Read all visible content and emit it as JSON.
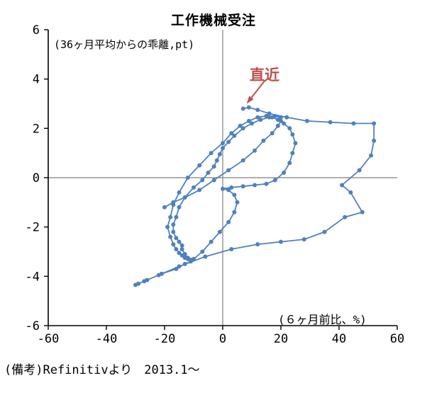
{
  "title": "工作機械受注",
  "footer": "(備考)Refinitivより　2013.1～",
  "annotations": {
    "y_unit": "(36ヶ月平均からの乖離,pt)",
    "x_unit": "(６ヶ月前比、%)",
    "latest_label": "直近"
  },
  "colors": {
    "series": "#4F81BD",
    "annotation": "#C0504D",
    "axis": "#000000",
    "zero_line": "#7f7f7f"
  },
  "chart_data": {
    "type": "scatter",
    "title": "工作機械受注",
    "xlabel": "(６ヶ月前比、%)",
    "ylabel": "(36ヶ月平均からの乖離,pt)",
    "xlim": [
      -60,
      60
    ],
    "ylim": [
      -6,
      6
    ],
    "xticks": [
      -60,
      -40,
      -20,
      0,
      20,
      40,
      60
    ],
    "yticks": [
      6,
      4,
      2,
      0,
      -2,
      -4,
      -6
    ],
    "grid": false,
    "line": true,
    "markers": true,
    "period_note": "2013.1～",
    "latest_point": {
      "x": 7,
      "y": 2.8
    },
    "points": [
      [
        -20,
        -1.2
      ],
      [
        -17,
        -1.0
      ],
      [
        -13,
        -0.8
      ],
      [
        -8,
        -0.5
      ],
      [
        -3,
        -0.1
      ],
      [
        2,
        0.3
      ],
      [
        7,
        0.7
      ],
      [
        11,
        1.1
      ],
      [
        14,
        1.5
      ],
      [
        17,
        1.8
      ],
      [
        19,
        2.1
      ],
      [
        20,
        2.3
      ],
      [
        20,
        2.45
      ],
      [
        18,
        2.5
      ],
      [
        16,
        2.45
      ],
      [
        13,
        2.35
      ],
      [
        10,
        2.2
      ],
      [
        7,
        2.0
      ],
      [
        4,
        1.7
      ],
      [
        2,
        1.45
      ],
      [
        0,
        1.2
      ],
      [
        -1,
        0.95
      ],
      [
        -2,
        0.7
      ],
      [
        -3,
        0.45
      ],
      [
        -5,
        0.2
      ],
      [
        -7,
        -0.1
      ],
      [
        -10,
        -0.4
      ],
      [
        -13,
        -0.8
      ],
      [
        -15,
        -1.2
      ],
      [
        -16,
        -1.6
      ],
      [
        -17,
        -1.9
      ],
      [
        -17,
        -2.2
      ],
      [
        -16,
        -2.45
      ],
      [
        -15,
        -2.6
      ],
      [
        -14,
        -2.75
      ],
      [
        -14,
        -2.9
      ],
      [
        -13,
        -3.1
      ],
      [
        -12,
        -3.25
      ],
      [
        -10,
        -3.3
      ],
      [
        -7,
        -3.0
      ],
      [
        -4,
        -2.6
      ],
      [
        -1,
        -2.2
      ],
      [
        2,
        -1.8
      ],
      [
        4,
        -1.4
      ],
      [
        5,
        -1.0
      ],
      [
        4,
        -0.7
      ],
      [
        2,
        -0.5
      ],
      [
        0,
        -0.45
      ],
      [
        3,
        -0.4
      ],
      [
        7,
        -0.35
      ],
      [
        11,
        -0.3
      ],
      [
        15,
        -0.25
      ],
      [
        18,
        -0.1
      ],
      [
        21,
        0.2
      ],
      [
        23,
        0.6
      ],
      [
        24,
        1.0
      ],
      [
        25,
        1.4
      ],
      [
        24,
        1.75
      ],
      [
        23,
        2.0
      ],
      [
        21,
        2.2
      ],
      [
        19,
        2.35
      ],
      [
        17,
        2.45
      ],
      [
        15,
        2.5
      ],
      [
        12,
        2.45
      ],
      [
        9,
        2.3
      ],
      [
        6,
        2.1
      ],
      [
        3,
        1.8
      ],
      [
        0,
        1.4
      ],
      [
        -4,
        1.0
      ],
      [
        -8,
        0.5
      ],
      [
        -12,
        0.0
      ],
      [
        -15,
        -0.6
      ],
      [
        -17,
        -1.1
      ],
      [
        -18,
        -1.6
      ],
      [
        -19,
        -2.0
      ],
      [
        -18,
        -2.4
      ],
      [
        -17,
        -2.7
      ],
      [
        -16,
        -2.9
      ],
      [
        -15,
        -3.05
      ],
      [
        -14,
        -3.15
      ],
      [
        -13,
        -3.25
      ],
      [
        -12,
        -3.3
      ],
      [
        -11,
        -3.35
      ],
      [
        -11,
        -3.4
      ],
      [
        -13,
        -3.5
      ],
      [
        -16,
        -3.7
      ],
      [
        -21,
        -3.9
      ],
      [
        -26,
        -4.15
      ],
      [
        -29,
        -4.3
      ],
      [
        -30,
        -4.35
      ],
      [
        -27,
        -4.2
      ],
      [
        -22,
        -3.95
      ],
      [
        -15,
        -3.6
      ],
      [
        -6,
        -3.2
      ],
      [
        3,
        -2.9
      ],
      [
        12,
        -2.7
      ],
      [
        20,
        -2.6
      ],
      [
        28,
        -2.5
      ],
      [
        35,
        -2.2
      ],
      [
        42,
        -1.6
      ],
      [
        48,
        -1.4
      ],
      [
        44,
        -0.6
      ],
      [
        41,
        -0.3
      ],
      [
        47,
        0.3
      ],
      [
        51,
        0.9
      ],
      [
        52,
        1.5
      ],
      [
        52,
        2.2
      ],
      [
        45,
        2.2
      ],
      [
        37,
        2.25
      ],
      [
        29,
        2.3
      ],
      [
        22,
        2.45
      ],
      [
        16,
        2.6
      ],
      [
        12,
        2.75
      ],
      [
        9,
        2.85
      ],
      [
        7,
        2.8
      ]
    ]
  }
}
